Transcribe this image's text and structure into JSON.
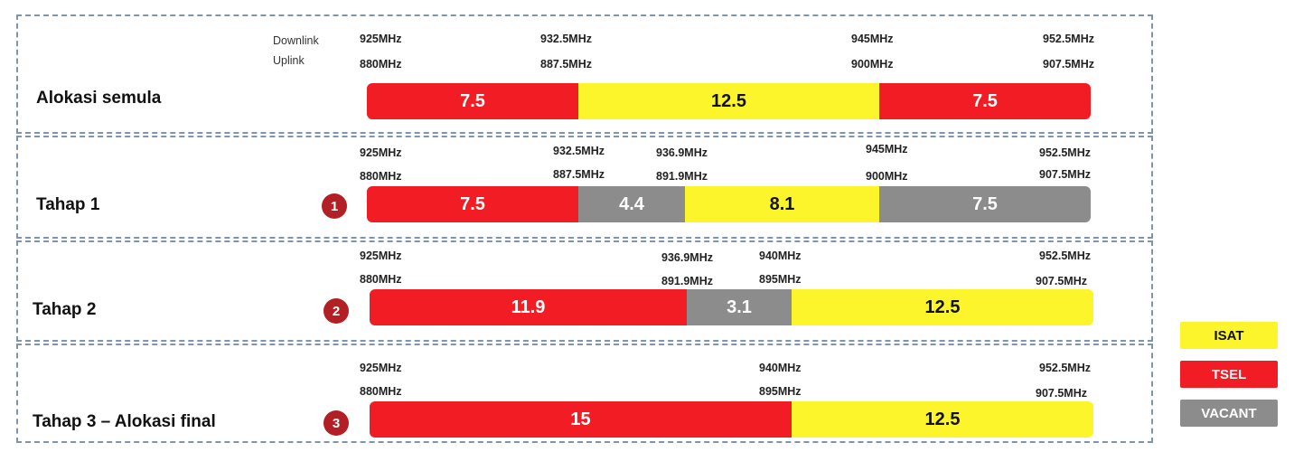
{
  "link_labels": {
    "downlink": "Downlink",
    "uplink": "Uplink"
  },
  "stages": [
    {
      "label": "Alokasi semula",
      "step": "",
      "downlink": [
        "925MHz",
        "932.5MHz",
        "945MHz",
        "952.5MHz"
      ],
      "uplink": [
        "880MHz",
        "887.5MHz",
        "900MHz",
        "907.5MHz"
      ],
      "segments": [
        {
          "operator": "TSEL",
          "mhz": "7.5"
        },
        {
          "operator": "ISAT",
          "mhz": "12.5"
        },
        {
          "operator": "TSEL",
          "mhz": "7.5"
        }
      ]
    },
    {
      "label": "Tahap 1",
      "step": "1",
      "downlink": [
        "925MHz",
        "932.5MHz",
        "936.9MHz",
        "945MHz",
        "952.5MHz"
      ],
      "uplink": [
        "880MHz",
        "887.5MHz",
        "891.9MHz",
        "900MHz",
        "907.5MHz"
      ],
      "segments": [
        {
          "operator": "TSEL",
          "mhz": "7.5"
        },
        {
          "operator": "VACANT",
          "mhz": "4.4"
        },
        {
          "operator": "ISAT",
          "mhz": "8.1"
        },
        {
          "operator": "VACANT",
          "mhz": "7.5"
        }
      ]
    },
    {
      "label": "Tahap 2",
      "step": "2",
      "downlink": [
        "925MHz",
        "936.9MHz",
        "940MHz",
        "952.5MHz"
      ],
      "uplink": [
        "880MHz",
        "891.9MHz",
        "895MHz",
        "907.5MHz"
      ],
      "segments": [
        {
          "operator": "TSEL",
          "mhz": "11.9"
        },
        {
          "operator": "VACANT",
          "mhz": "3.1"
        },
        {
          "operator": "ISAT",
          "mhz": "12.5"
        }
      ]
    },
    {
      "label": "Tahap 3 – Alokasi final",
      "step": "3",
      "downlink": [
        "925MHz",
        "940MHz",
        "952.5MHz"
      ],
      "uplink": [
        "880MHz",
        "895MHz",
        "907.5MHz"
      ],
      "segments": [
        {
          "operator": "TSEL",
          "mhz": "15"
        },
        {
          "operator": "ISAT",
          "mhz": "12.5"
        }
      ]
    }
  ],
  "legend": [
    {
      "label": "ISAT",
      "color": "#fcf52c"
    },
    {
      "label": "TSEL",
      "color": "#f21c24"
    },
    {
      "label": "VACANT",
      "color": "#8c8c8c"
    }
  ]
}
